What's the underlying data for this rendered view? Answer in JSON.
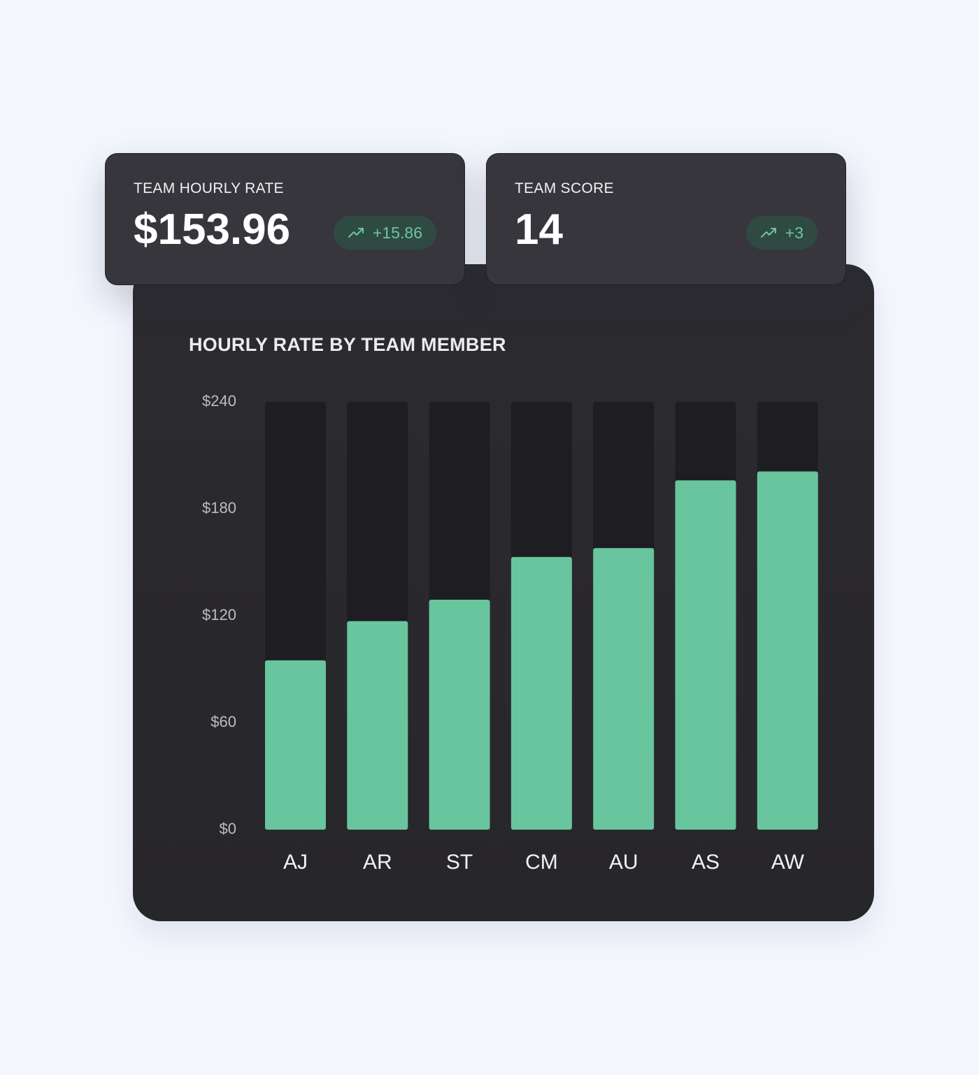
{
  "stats": {
    "hourly_rate": {
      "label": "TEAM HOURLY RATE",
      "value": "$153.96",
      "delta": "+15.86",
      "delta_icon": "trending-up-icon"
    },
    "team_score": {
      "label": "TEAM SCORE",
      "value": "14",
      "delta": "+3",
      "delta_icon": "trending-up-icon"
    }
  },
  "colors": {
    "page_background": "#f3f6fd",
    "card_background": "#38363d",
    "panel_background": "#28272b",
    "bar_fill": "#68c59d",
    "bar_track": "#1e1d21",
    "badge_background": "#2f4a42",
    "badge_text": "#6cc69f"
  },
  "chart_data": {
    "type": "bar",
    "title": "HOURLY RATE BY TEAM MEMBER",
    "xlabel": "",
    "ylabel": "",
    "categories": [
      "AJ",
      "AR",
      "ST",
      "CM",
      "AU",
      "AS",
      "AW"
    ],
    "values": [
      95,
      117,
      129,
      153,
      158,
      196,
      201
    ],
    "ylim": [
      0,
      240
    ],
    "yticks": [
      "$0",
      "$60",
      "$120",
      "$180",
      "$240"
    ],
    "ytick_values": [
      0,
      60,
      120,
      180,
      240
    ],
    "bar_background_to_max": true,
    "grid": false,
    "legend": "none"
  }
}
